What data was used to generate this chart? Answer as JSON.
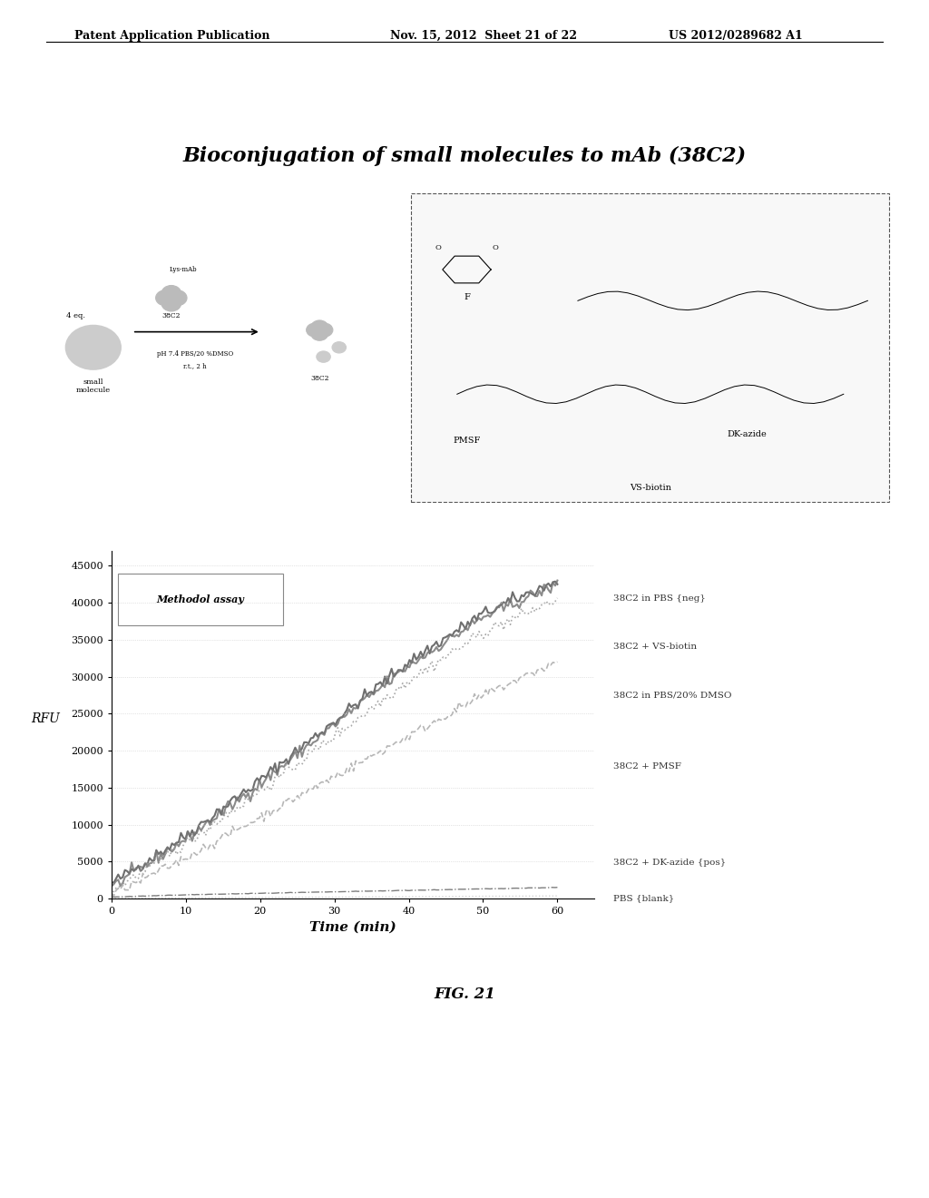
{
  "header_left": "Patent Application Publication",
  "header_mid": "Nov. 15, 2012  Sheet 21 of 22",
  "header_right": "US 2012/0289682 A1",
  "slide_title": "Bioconjugation of small molecules to mAb (38C2)",
  "fig_label": "FIG. 21",
  "plot_title": "Methodol assay",
  "xlabel": "Time (min)",
  "ylabel": "RFU",
  "x_ticks": [
    0,
    10,
    20,
    30,
    40,
    50,
    60
  ],
  "y_ticks": [
    0,
    5000,
    10000,
    15000,
    20000,
    25000,
    30000,
    35000,
    40000,
    45000
  ],
  "ylim": [
    0,
    47000
  ],
  "xlim": [
    0,
    65
  ],
  "lines": [
    {
      "label": "38C2 in PBS {neg}",
      "x": [
        0,
        10,
        20,
        30,
        40,
        50,
        60
      ],
      "y": [
        2000,
        8500,
        16000,
        24000,
        32000,
        38500,
        43000
      ],
      "color": "#888888",
      "linestyle": "-",
      "linewidth": 1.5
    },
    {
      "label": "38C2 + VS-biotin",
      "x": [
        0,
        10,
        20,
        30,
        40,
        50,
        60
      ],
      "y": [
        1500,
        8000,
        15500,
        23500,
        31500,
        38000,
        42500
      ],
      "color": "#aaaaaa",
      "linestyle": "-",
      "linewidth": 1.5
    },
    {
      "label": "38C2 in PBS/20% DMSO",
      "x": [
        0,
        10,
        20,
        30,
        40,
        50,
        60
      ],
      "y": [
        1000,
        7500,
        14500,
        22000,
        29500,
        36000,
        40500
      ],
      "color": "#bbbbbb",
      "linestyle": ":",
      "linewidth": 1.2
    },
    {
      "label": "38C2 + PMSF",
      "x": [
        0,
        10,
        20,
        30,
        40,
        50,
        60
      ],
      "y": [
        500,
        5500,
        11000,
        16500,
        22000,
        27500,
        32000
      ],
      "color": "#999999",
      "linestyle": "--",
      "linewidth": 1.2
    },
    {
      "label": "38C2 + DK-azide {pos}",
      "x": [
        0,
        10,
        20,
        30,
        40,
        50,
        60
      ],
      "y": [
        200,
        500,
        700,
        900,
        1100,
        1300,
        1500
      ],
      "color": "#777777",
      "linestyle": "-.",
      "linewidth": 1.0
    },
    {
      "label": "PBS {blank}",
      "x": [
        0,
        10,
        20,
        30,
        40,
        50,
        60
      ],
      "y": [
        50,
        100,
        150,
        200,
        250,
        300,
        350
      ],
      "color": "#bbbbbb",
      "linestyle": ":",
      "linewidth": 1.0
    }
  ],
  "bg_color": "#ffffff",
  "plot_bg_color": "#ffffff",
  "header_fontsize": 9,
  "title_fontsize": 16,
  "axis_fontsize": 9,
  "tick_fontsize": 8
}
